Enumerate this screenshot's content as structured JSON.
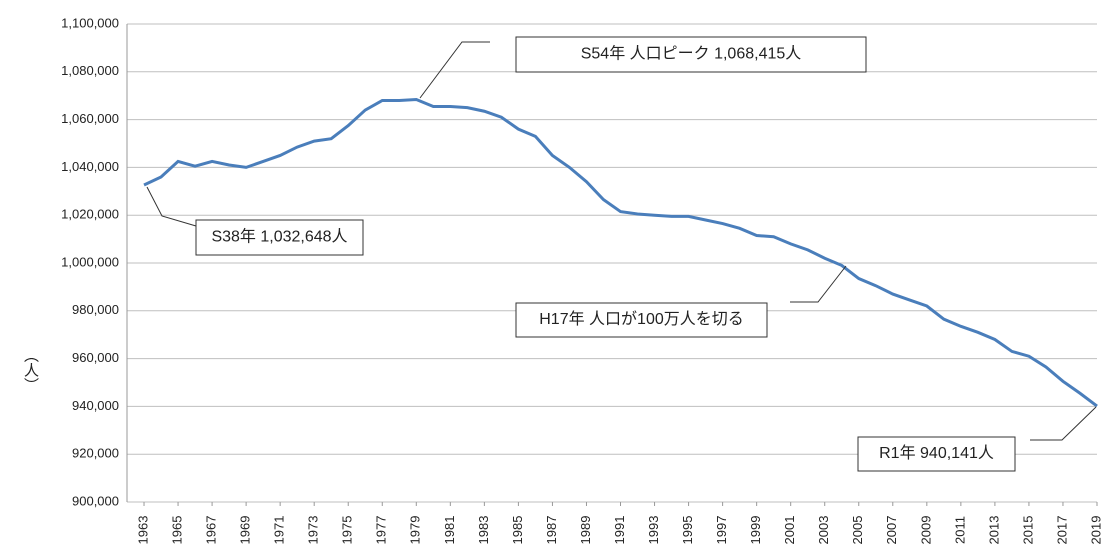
{
  "chart_data": {
    "type": "line",
    "y_label": "（人）",
    "x": [
      1963,
      1964,
      1965,
      1966,
      1967,
      1968,
      1969,
      1970,
      1971,
      1972,
      1973,
      1974,
      1975,
      1976,
      1977,
      1978,
      1979,
      1980,
      1981,
      1982,
      1983,
      1984,
      1985,
      1986,
      1987,
      1988,
      1989,
      1990,
      1991,
      1992,
      1993,
      1994,
      1995,
      1996,
      1997,
      1998,
      1999,
      2000,
      2001,
      2002,
      2003,
      2004,
      2005,
      2006,
      2007,
      2008,
      2009,
      2010,
      2011,
      2012,
      2013,
      2014,
      2015,
      2016,
      2017,
      2018,
      2019
    ],
    "series": [
      {
        "color": "#4a7ebb",
        "values": [
          1032648,
          1036000,
          1042500,
          1040500,
          1042500,
          1041000,
          1040000,
          1042500,
          1045000,
          1048500,
          1051000,
          1052000,
          1057500,
          1064000,
          1068000,
          1068000,
          1068415,
          1065500,
          1065500,
          1065000,
          1063500,
          1061000,
          1056000,
          1053000,
          1045000,
          1040000,
          1034000,
          1026500,
          1021500,
          1020500,
          1020000,
          1019500,
          1019500,
          1018000,
          1016500,
          1014500,
          1011500,
          1011000,
          1008000,
          1005500,
          1002000,
          999000,
          993500,
          990500,
          987000,
          984500,
          982000,
          976500,
          973500,
          971000,
          968000,
          963000,
          961000,
          956500,
          950500,
          945500,
          940141
        ]
      }
    ],
    "xlim": [
      1962,
      2019
    ],
    "xticks": [
      1963,
      1965,
      1967,
      1969,
      1971,
      1973,
      1975,
      1977,
      1979,
      1981,
      1983,
      1985,
      1987,
      1989,
      1991,
      1993,
      1995,
      1997,
      1999,
      2001,
      2003,
      2005,
      2007,
      2009,
      2011,
      2013,
      2015,
      2017,
      2019
    ],
    "ylim": [
      900000,
      1100000
    ],
    "yticks": [
      {
        "value": 900000,
        "label": "900,000"
      },
      {
        "value": 920000,
        "label": "920,000"
      },
      {
        "value": 940000,
        "label": "940,000"
      },
      {
        "value": 960000,
        "label": "960,000"
      },
      {
        "value": 980000,
        "label": "980,000"
      },
      {
        "value": 1000000,
        "label": "1,000,000"
      },
      {
        "value": 1020000,
        "label": "1,020,000"
      },
      {
        "value": 1040000,
        "label": "1,040,000"
      },
      {
        "value": 1060000,
        "label": "1,060,000"
      },
      {
        "value": 1080000,
        "label": "1,080,000"
      },
      {
        "value": 1100000,
        "label": "1,100,000"
      }
    ],
    "grid": true,
    "annotations": [
      {
        "text": "S38年  1,032,648人"
      },
      {
        "text": "S54年  人口ピーク 1,068,415人"
      },
      {
        "text": "H17年  人口が100万人を切る"
      },
      {
        "text": "R1年  940,141人"
      }
    ]
  }
}
